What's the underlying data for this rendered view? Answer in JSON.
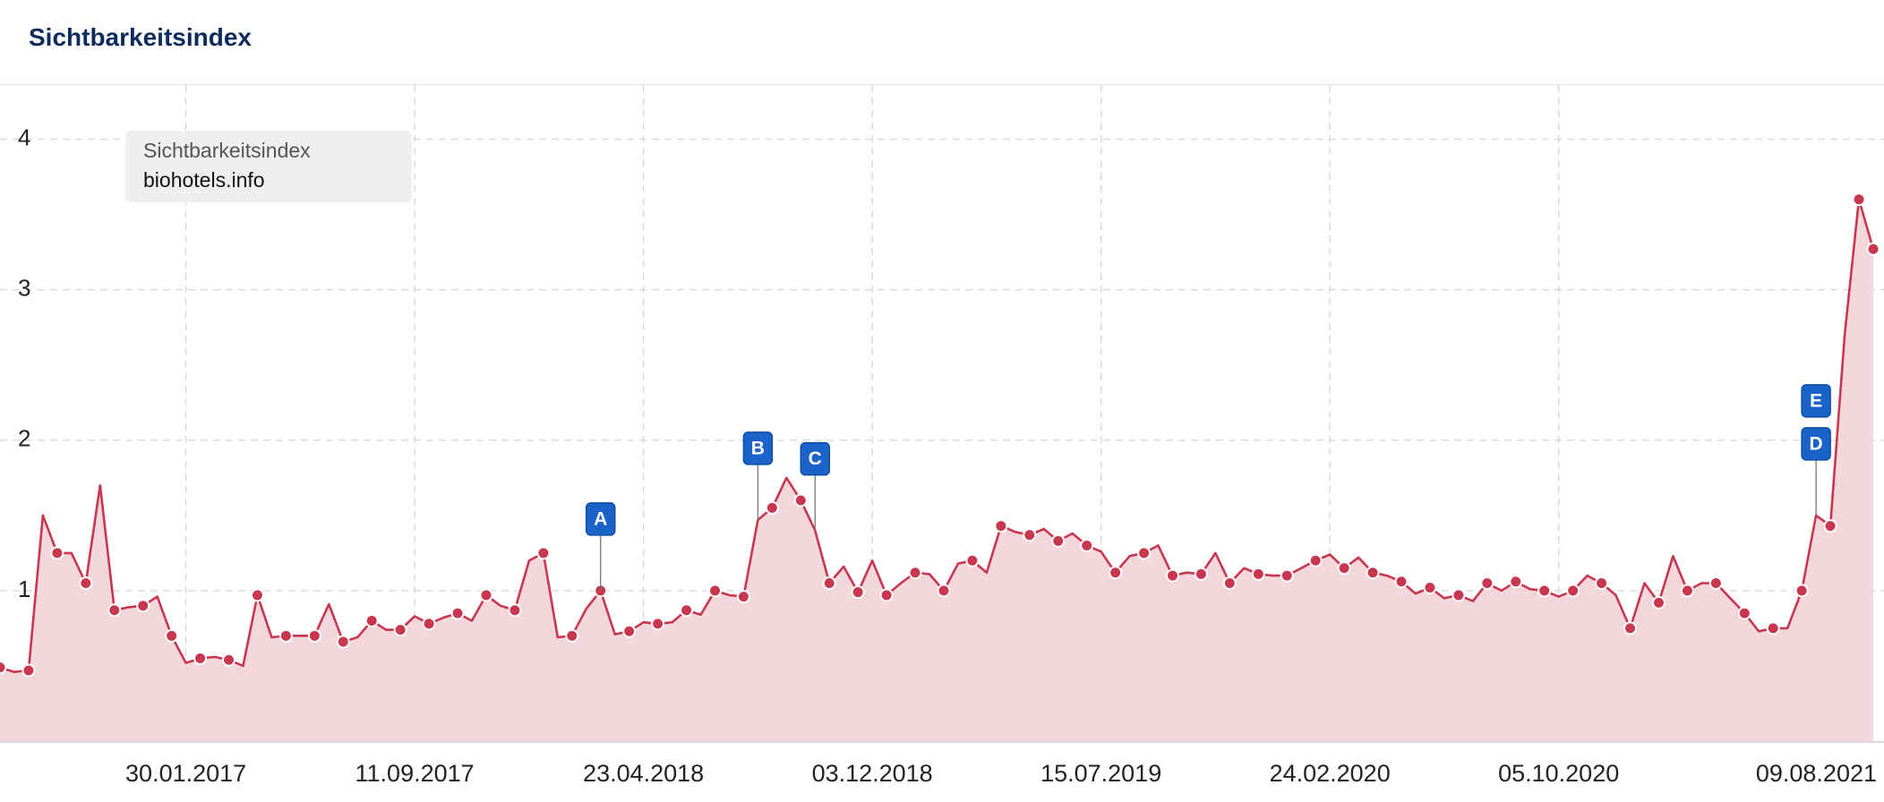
{
  "chart_data": {
    "type": "area",
    "title": "Sichtbarkeitsindex",
    "legend_title": "Sichtbarkeitsindex",
    "legend_position": "upper left",
    "grid": true,
    "x": [
      "01.08.2016",
      "15.08.2016",
      "29.08.2016",
      "12.09.2016",
      "26.09.2016",
      "10.10.2016",
      "24.10.2016",
      "07.11.2016",
      "21.11.2016",
      "05.12.2016",
      "19.12.2016",
      "02.01.2017",
      "16.01.2017",
      "30.01.2017",
      "13.02.2017",
      "27.02.2017",
      "13.03.2017",
      "27.03.2017",
      "10.04.2017",
      "24.04.2017",
      "08.05.2017",
      "22.05.2017",
      "05.06.2017",
      "19.06.2017",
      "03.07.2017",
      "17.07.2017",
      "31.07.2017",
      "14.08.2017",
      "28.08.2017",
      "11.09.2017",
      "25.09.2017",
      "09.10.2017",
      "23.10.2017",
      "06.11.2017",
      "20.11.2017",
      "04.12.2017",
      "18.12.2017",
      "01.01.2018",
      "15.01.2018",
      "29.01.2018",
      "12.02.2018",
      "26.02.2018",
      "12.03.2018",
      "26.03.2018",
      "09.04.2018",
      "23.04.2018",
      "07.05.2018",
      "21.05.2018",
      "04.06.2018",
      "18.06.2018",
      "02.07.2018",
      "16.07.2018",
      "30.07.2018",
      "13.08.2018",
      "27.08.2018",
      "10.09.2018",
      "24.09.2018",
      "08.10.2018",
      "22.10.2018",
      "05.11.2018",
      "19.11.2018",
      "03.12.2018",
      "17.12.2018",
      "31.12.2018",
      "14.01.2019",
      "28.01.2019",
      "11.02.2019",
      "25.02.2019",
      "11.03.2019",
      "25.03.2019",
      "08.04.2019",
      "22.04.2019",
      "06.05.2019",
      "20.05.2019",
      "03.06.2019",
      "17.06.2019",
      "01.07.2019",
      "15.07.2019",
      "29.07.2019",
      "12.08.2019",
      "26.08.2019",
      "09.09.2019",
      "23.09.2019",
      "07.10.2019",
      "21.10.2019",
      "04.11.2019",
      "18.11.2019",
      "02.12.2019",
      "16.12.2019",
      "30.12.2019",
      "13.01.2020",
      "27.01.2020",
      "10.02.2020",
      "24.02.2020",
      "09.03.2020",
      "23.03.2020",
      "06.04.2020",
      "20.04.2020",
      "04.05.2020",
      "18.05.2020",
      "01.06.2020",
      "15.06.2020",
      "29.06.2020",
      "13.07.2020",
      "27.07.2020",
      "10.08.2020",
      "24.08.2020",
      "07.09.2020",
      "21.09.2020",
      "05.10.2020",
      "19.10.2020",
      "02.11.2020",
      "16.11.2020",
      "30.11.2020",
      "14.12.2020",
      "28.12.2020",
      "11.01.2021",
      "25.01.2021",
      "08.02.2021",
      "22.02.2021",
      "08.03.2021",
      "22.03.2021",
      "05.04.2021",
      "19.04.2021",
      "03.05.2021",
      "17.05.2021",
      "31.05.2021",
      "14.06.2021",
      "28.06.2021",
      "12.07.2021",
      "26.07.2021",
      "09.08.2021"
    ],
    "series": [
      {
        "name": "biohotels.info",
        "color": "#c8374f",
        "fill": "#f4d7dd",
        "values": [
          0.49,
          0.46,
          0.47,
          1.5,
          1.25,
          1.25,
          1.05,
          1.7,
          0.87,
          0.89,
          0.9,
          0.96,
          0.7,
          0.52,
          0.55,
          0.56,
          0.54,
          0.5,
          0.97,
          0.69,
          0.7,
          0.7,
          0.7,
          0.91,
          0.66,
          0.69,
          0.8,
          0.74,
          0.74,
          0.83,
          0.78,
          0.82,
          0.85,
          0.8,
          0.97,
          0.9,
          0.87,
          1.2,
          1.25,
          0.69,
          0.7,
          0.88,
          1.0,
          0.71,
          0.73,
          0.79,
          0.78,
          0.79,
          0.87,
          0.84,
          1.0,
          0.97,
          0.96,
          1.47,
          1.55,
          1.75,
          1.6,
          1.4,
          1.05,
          1.16,
          0.99,
          1.2,
          0.97,
          1.05,
          1.12,
          1.11,
          1.0,
          1.18,
          1.2,
          1.12,
          1.43,
          1.39,
          1.37,
          1.41,
          1.33,
          1.38,
          1.3,
          1.26,
          1.12,
          1.23,
          1.25,
          1.3,
          1.1,
          1.12,
          1.11,
          1.25,
          1.05,
          1.15,
          1.11,
          1.1,
          1.1,
          1.15,
          1.2,
          1.24,
          1.15,
          1.22,
          1.12,
          1.1,
          1.06,
          0.98,
          1.02,
          0.95,
          0.97,
          0.93,
          1.05,
          1.0,
          1.06,
          1.01,
          1.0,
          0.96,
          1.0,
          1.1,
          1.05,
          0.97,
          0.75,
          1.05,
          0.92,
          1.23,
          1.0,
          1.05,
          1.05,
          0.95,
          0.85,
          0.73,
          0.75,
          0.75,
          1.0,
          1.5,
          1.43,
          2.7,
          3.6,
          3.27
        ]
      }
    ],
    "xlim": [
      "01.08.2016",
      "09.08.2021"
    ],
    "xticks": [
      "30.01.2017",
      "11.09.2017",
      "23.04.2018",
      "03.12.2018",
      "15.07.2019",
      "24.02.2020",
      "05.10.2020",
      "09.08.2021"
    ],
    "ylim": [
      0,
      4.36
    ],
    "yticks": [
      1,
      2,
      3,
      4
    ],
    "annotations": [
      {
        "label": "A",
        "x": "12.03.2018"
      },
      {
        "label": "B",
        "x": "13.08.2018"
      },
      {
        "label": "C",
        "x": "08.10.2018"
      },
      {
        "label": "D",
        "x": "14.06.2021"
      },
      {
        "label": "E",
        "x": "14.06.2021"
      }
    ]
  }
}
